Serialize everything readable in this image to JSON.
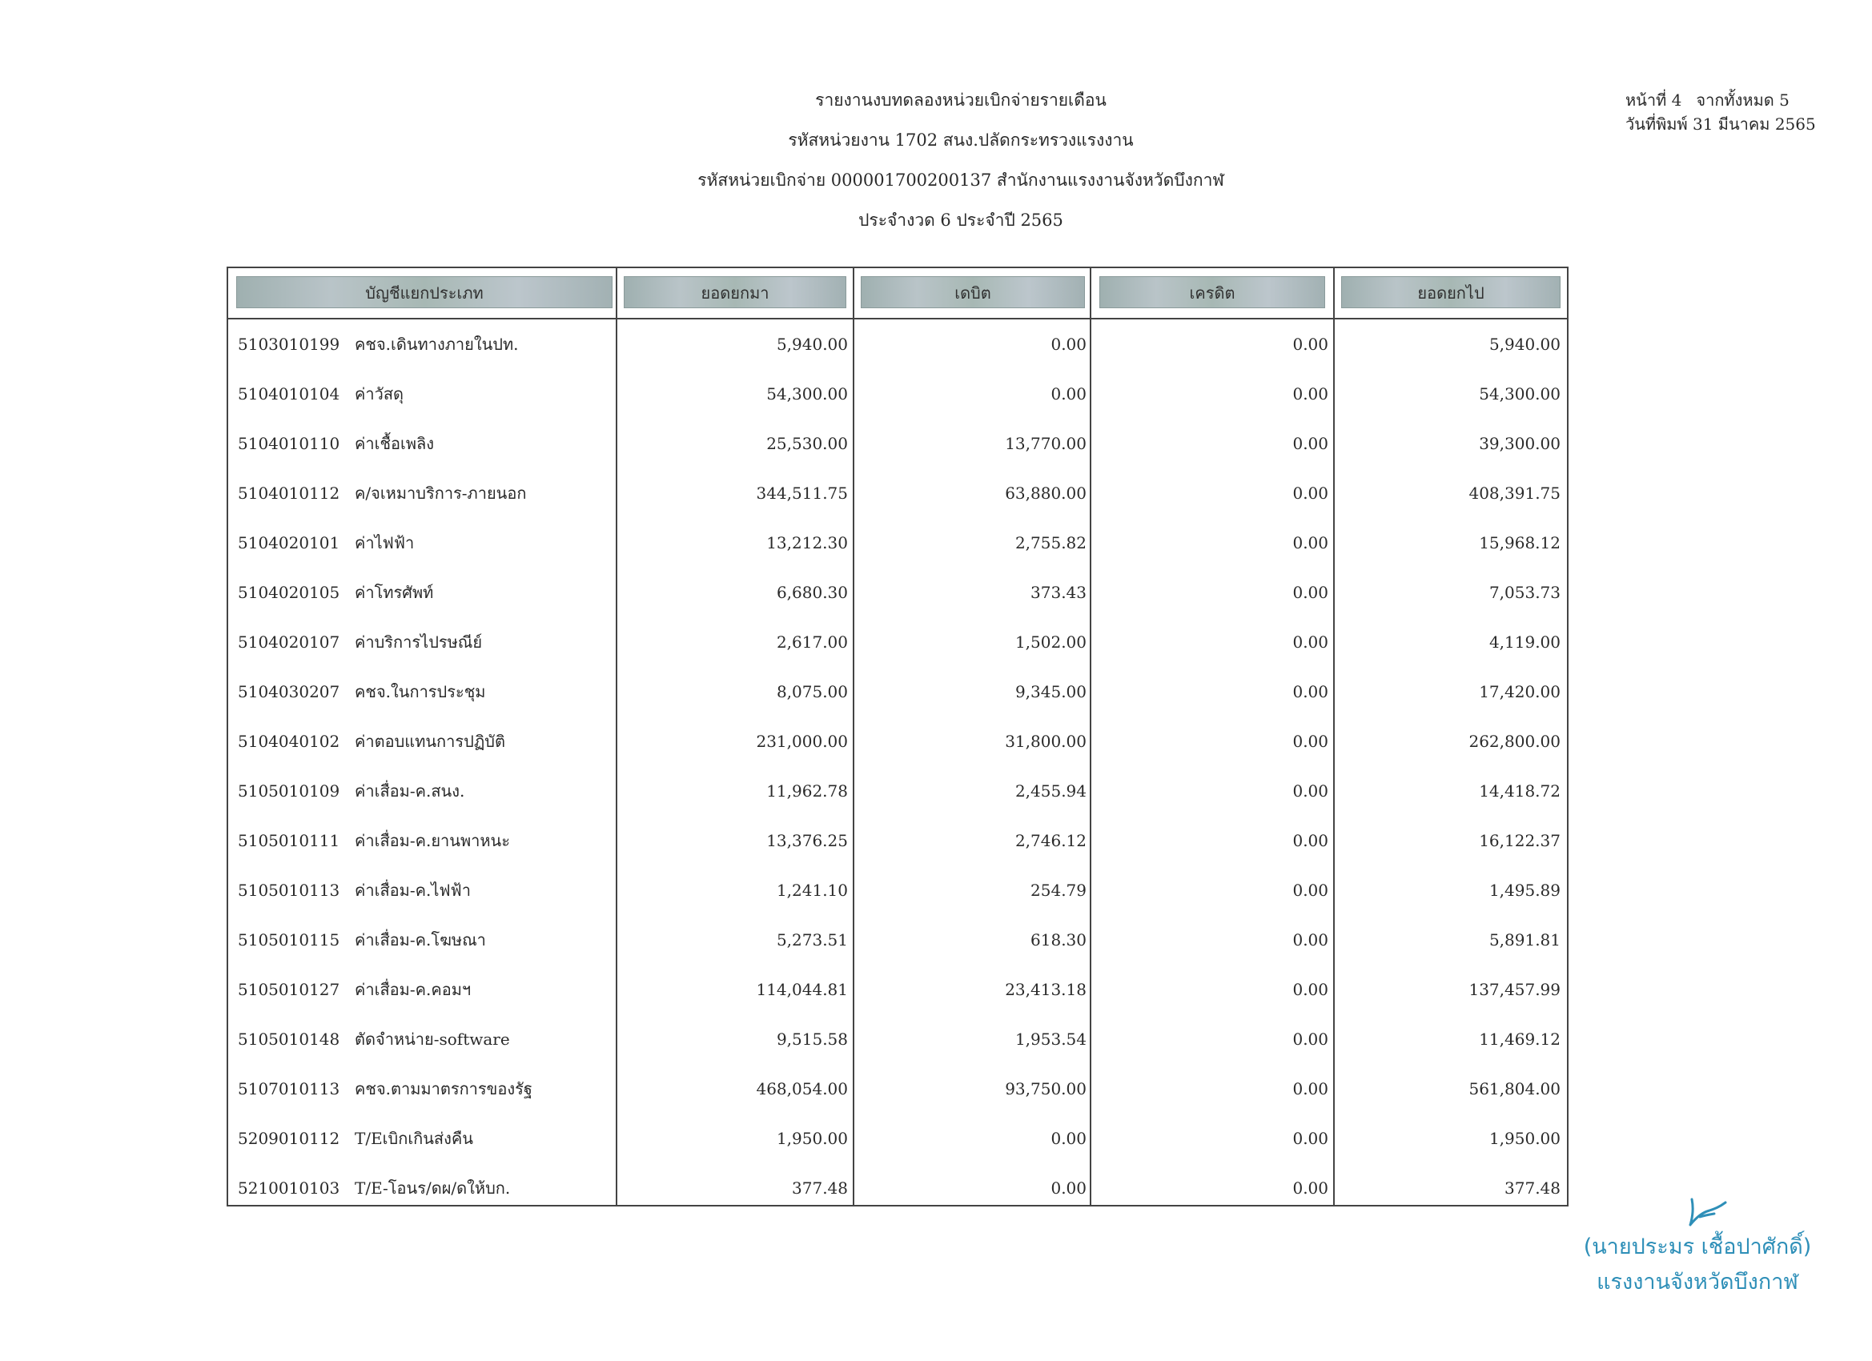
{
  "header": {
    "lines": [
      "รายงานงบทดลองหน่วยเบิกจ่ายรายเดือน",
      "รหัสหน่วยงาน 1702 สนง.ปลัดกระทรวงแรงงาน",
      "รหัสหน่วยเบิกจ่าย 000001700200137 สำนักงานแรงงานจังหวัดบึงกาฬ",
      "ประจำงวด 6 ประจำปี 2565"
    ]
  },
  "page_meta": {
    "page_label": "หน้าที่",
    "page_number": "4",
    "total_label": "จากทั้งหมด",
    "total_pages": "5",
    "print_date_label": "วันที่พิมพ์",
    "print_date": "31 มีนาคม 2565"
  },
  "table": {
    "columns": [
      "บัญชีแยกประเภท",
      "ยอดยกมา",
      "เดบิต",
      "เครดิต",
      "ยอดยกไป"
    ],
    "rows": [
      {
        "code": "5103010199",
        "name": "คชจ.เดินทางภายในปท.",
        "brought": "5,940.00",
        "debit": "0.00",
        "credit": "0.00",
        "carried": "5,940.00"
      },
      {
        "code": "5104010104",
        "name": "ค่าวัสดุ",
        "brought": "54,300.00",
        "debit": "0.00",
        "credit": "0.00",
        "carried": "54,300.00"
      },
      {
        "code": "5104010110",
        "name": "ค่าเชื้อเพลิง",
        "brought": "25,530.00",
        "debit": "13,770.00",
        "credit": "0.00",
        "carried": "39,300.00"
      },
      {
        "code": "5104010112",
        "name": "ค/จเหมาบริการ-ภายนอก",
        "brought": "344,511.75",
        "debit": "63,880.00",
        "credit": "0.00",
        "carried": "408,391.75"
      },
      {
        "code": "5104020101",
        "name": "ค่าไฟฟ้า",
        "brought": "13,212.30",
        "debit": "2,755.82",
        "credit": "0.00",
        "carried": "15,968.12"
      },
      {
        "code": "5104020105",
        "name": "ค่าโทรศัพท์",
        "brought": "6,680.30",
        "debit": "373.43",
        "credit": "0.00",
        "carried": "7,053.73"
      },
      {
        "code": "5104020107",
        "name": "ค่าบริการไปรษณีย์",
        "brought": "2,617.00",
        "debit": "1,502.00",
        "credit": "0.00",
        "carried": "4,119.00"
      },
      {
        "code": "5104030207",
        "name": "คชจ.ในการประชุม",
        "brought": "8,075.00",
        "debit": "9,345.00",
        "credit": "0.00",
        "carried": "17,420.00"
      },
      {
        "code": "5104040102",
        "name": "ค่าตอบแทนการปฏิบัติ",
        "brought": "231,000.00",
        "debit": "31,800.00",
        "credit": "0.00",
        "carried": "262,800.00"
      },
      {
        "code": "5105010109",
        "name": "ค่าเสื่อม-ค.สนง.",
        "brought": "11,962.78",
        "debit": "2,455.94",
        "credit": "0.00",
        "carried": "14,418.72"
      },
      {
        "code": "5105010111",
        "name": "ค่าเสื่อม-ค.ยานพาหนะ",
        "brought": "13,376.25",
        "debit": "2,746.12",
        "credit": "0.00",
        "carried": "16,122.37"
      },
      {
        "code": "5105010113",
        "name": "ค่าเสื่อม-ค.ไฟฟ้า",
        "brought": "1,241.10",
        "debit": "254.79",
        "credit": "0.00",
        "carried": "1,495.89"
      },
      {
        "code": "5105010115",
        "name": "ค่าเสื่อม-ค.โฆษณา",
        "brought": "5,273.51",
        "debit": "618.30",
        "credit": "0.00",
        "carried": "5,891.81"
      },
      {
        "code": "5105010127",
        "name": "ค่าเสื่อม-ค.คอมฯ",
        "brought": "114,044.81",
        "debit": "23,413.18",
        "credit": "0.00",
        "carried": "137,457.99"
      },
      {
        "code": "5105010148",
        "name": "ตัดจำหน่าย-software",
        "brought": "9,515.58",
        "debit": "1,953.54",
        "credit": "0.00",
        "carried": "11,469.12"
      },
      {
        "code": "5107010113",
        "name": "คชจ.ตามมาตรการของรัฐ",
        "brought": "468,054.00",
        "debit": "93,750.00",
        "credit": "0.00",
        "carried": "561,804.00"
      },
      {
        "code": "5209010112",
        "name": "T/Eเบิกเกินส่งคืน",
        "brought": "1,950.00",
        "debit": "0.00",
        "credit": "0.00",
        "carried": "1,950.00"
      },
      {
        "code": "5210010103",
        "name": "T/E-โอนร/ดผ/ดให้บก.",
        "brought": "377.48",
        "debit": "0.00",
        "credit": "0.00",
        "carried": "377.48"
      }
    ]
  },
  "signature": {
    "name": "(นายประมร เชื้อปาศักดิ์)",
    "title": "แรงงานจังหวัดบึงกาฬ",
    "ink_color": "#2e8fb8"
  }
}
